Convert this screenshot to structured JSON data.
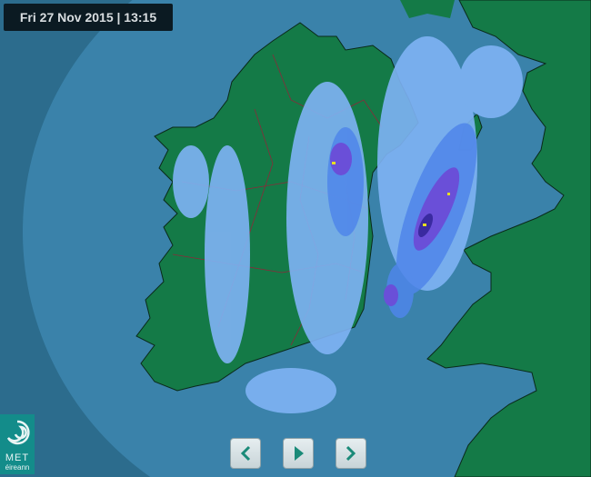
{
  "header": {
    "timestamp": "Fri 27 Nov 2015 | 13:15"
  },
  "logo": {
    "line1": "MET",
    "line2": "éireann"
  },
  "controls": {
    "previous": {
      "icon": "chevron-left-icon"
    },
    "play": {
      "icon": "play-icon"
    },
    "next": {
      "icon": "chevron-right-icon"
    }
  },
  "colors": {
    "sea": "#2c6c8d",
    "radar_range": "#3a82aa",
    "land": "#147a47",
    "rain_light": "#7fb3f5",
    "rain_moderate": "#4f86ea",
    "rain_heavy": "#6a4fd8",
    "rain_very_heavy": "#3a2aa0",
    "rain_extreme": "#e8e020",
    "accent": "#1a8a78"
  }
}
